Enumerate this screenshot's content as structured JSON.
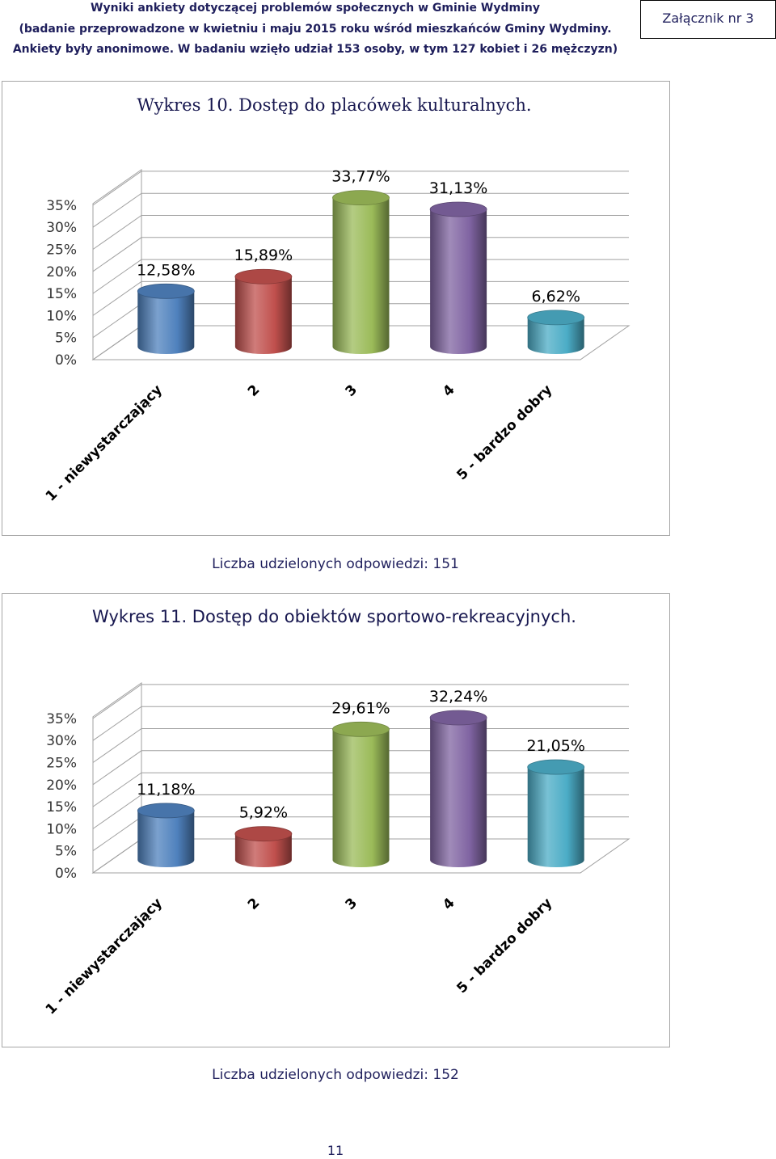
{
  "header": {
    "line1": "Wyniki ankiety dotyczącej problemów społecznych w Gminie Wydminy",
    "line2": "(badanie przeprowadzone w kwietniu i maju 2015 roku wśród mieszkańców Gminy Wydminy.",
    "line3": "Ankiety były anonimowe. W badaniu wzięło udział 153 osoby, w tym 127 kobiet i 26 mężczyzn)",
    "attachment": "Załącznik nr 3"
  },
  "chart_data": [
    {
      "type": "bar",
      "title": "Wykres 10. Dostęp do placówek kulturalnych.",
      "categories": [
        "1 - niewystarczający",
        "2",
        "3",
        "4",
        "5 - bardzo dobry"
      ],
      "values": [
        12.58,
        15.89,
        33.77,
        31.13,
        6.62
      ],
      "data_labels": [
        "12,58%",
        "15,89%",
        "33,77%",
        "31,13%",
        "6,62%"
      ],
      "yticks": [
        "0%",
        "5%",
        "10%",
        "15%",
        "20%",
        "25%",
        "30%",
        "35%"
      ],
      "ylim": [
        0,
        35
      ],
      "colors": [
        "#4f81bd",
        "#c0504d",
        "#9bbb59",
        "#8064a2",
        "#4bacc6"
      ],
      "note": "Liczba udzielonych odpowiedzi: 151"
    },
    {
      "type": "bar",
      "title": "Wykres 11. Dostęp do obiektów sportowo-rekreacyjnych.",
      "categories": [
        "1 - niewystarczający",
        "2",
        "3",
        "4",
        "5 - bardzo dobry"
      ],
      "values": [
        11.18,
        5.92,
        29.61,
        32.24,
        21.05
      ],
      "data_labels": [
        "11,18%",
        "5,92%",
        "29,61%",
        "32,24%",
        "21,05%"
      ],
      "yticks": [
        "0%",
        "5%",
        "10%",
        "15%",
        "20%",
        "25%",
        "30%",
        "35%"
      ],
      "ylim": [
        0,
        35
      ],
      "colors": [
        "#4f81bd",
        "#c0504d",
        "#9bbb59",
        "#8064a2",
        "#4bacc6"
      ],
      "note": "Liczba udzielonych odpowiedzi: 152"
    }
  ],
  "page_number": "11"
}
